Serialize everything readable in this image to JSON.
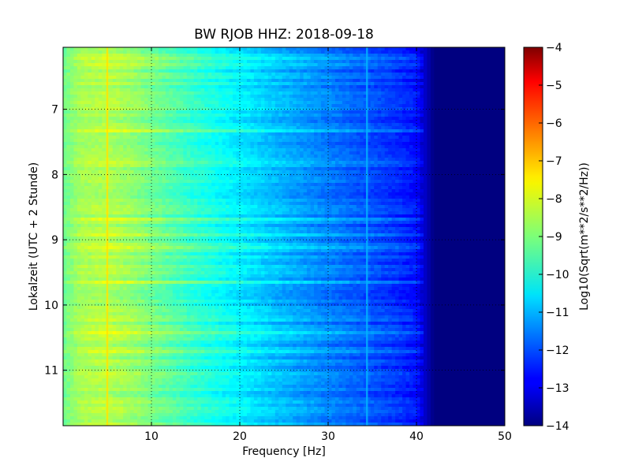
{
  "chart_data": {
    "type": "heatmap",
    "title": "BW RJOB HHZ: 2018-09-18",
    "xlabel": "Frequency [Hz]",
    "ylabel": "Lokalzeit (UTC + 2 Stunde)",
    "xlim": [
      0,
      50
    ],
    "ylim": [
      6.05,
      11.85
    ],
    "y_inverted": true,
    "x_ticks": [
      10,
      20,
      30,
      40,
      50
    ],
    "y_ticks": [
      7,
      8,
      9,
      10,
      11
    ],
    "grid": true,
    "colormap": "jet",
    "colorbar": {
      "label": "Log10(Sqrt(m**2/s**2/Hz))",
      "range": [
        -14,
        -4
      ],
      "ticks": [
        -4,
        -5,
        -6,
        -7,
        -8,
        -9,
        -10,
        -11,
        -12,
        -13,
        -14
      ]
    },
    "spectrum_profile": {
      "frequency_hz": [
        0,
        2,
        5,
        8,
        10,
        15,
        20,
        25,
        30,
        35,
        38,
        40,
        41,
        42,
        50
      ],
      "log10_psd": [
        -9.2,
        -8.6,
        -8.5,
        -8.8,
        -9.1,
        -9.8,
        -10.4,
        -11.0,
        -11.5,
        -12.0,
        -12.3,
        -12.6,
        -13.3,
        -14.0,
        -14.0
      ]
    },
    "spectral_lines": [
      {
        "frequency_hz": 5.0,
        "log10_psd": -7.5
      },
      {
        "frequency_hz": 34.4,
        "log10_psd": -11.0
      }
    ]
  }
}
